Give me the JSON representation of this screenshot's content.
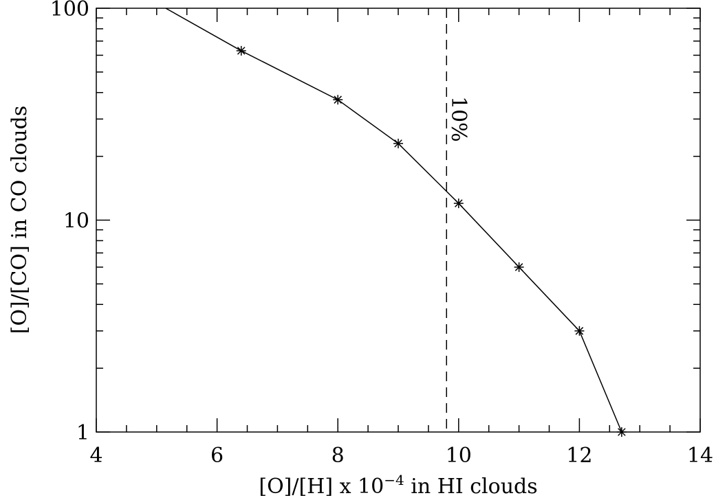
{
  "chart_data": {
    "type": "line",
    "xlabel": "[O]/[H] x 10",
    "xlabel_superscript": "−4",
    "xlabel_suffix": " in HI clouds",
    "ylabel": "[O]/[CO] in CO clouds",
    "xlim": [
      4,
      14
    ],
    "ylim": [
      1,
      100
    ],
    "yscale": "log",
    "x_ticks": [
      "4",
      "6",
      "8",
      "10",
      "12",
      "14"
    ],
    "y_ticks": [
      "1",
      "10",
      "100"
    ],
    "grid": false,
    "series": [
      {
        "line_start": {
          "x": 5.15,
          "y": 100
        },
        "marker": "asterisk",
        "points": [
          {
            "x": 6.4,
            "y": 63
          },
          {
            "x": 8.0,
            "y": 37
          },
          {
            "x": 9.0,
            "y": 23
          },
          {
            "x": 10.0,
            "y": 12
          },
          {
            "x": 11.0,
            "y": 6
          },
          {
            "x": 12.0,
            "y": 3
          },
          {
            "x": 12.7,
            "y": 1
          }
        ]
      }
    ],
    "reference_line": {
      "x": 9.8,
      "style": "dashed"
    },
    "annotation": {
      "text": "10%",
      "x": 10.0,
      "y": 30,
      "rotation": 90
    }
  }
}
